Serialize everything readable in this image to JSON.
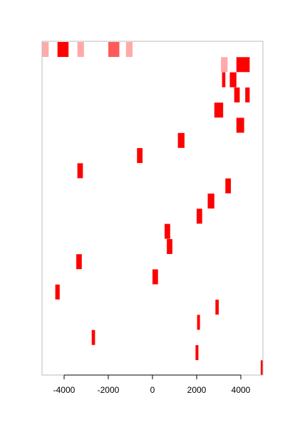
{
  "chart_data": {
    "type": "bar",
    "orientation": "horizontal-ranges",
    "xlim": [
      -5000,
      5000
    ],
    "ylim": [
      0,
      22
    ],
    "x_ticks": [
      -4000,
      -2000,
      0,
      2000,
      4000
    ],
    "x_tick_labels": [
      "-4000",
      "-2000",
      "0",
      "2000",
      "4000"
    ],
    "grid": false,
    "legend": "none",
    "colors": {
      "primary": "#ff0000",
      "medium": "#ff5a5a",
      "light": "#ffaaaa",
      "frame": "#bbbbbb",
      "axis": "#000000"
    },
    "series": [
      {
        "row": 0,
        "color": "light",
        "segments": [
          [
            -5000,
            -4700
          ],
          [
            -3400,
            -3100
          ],
          [
            -1200,
            -900
          ]
        ]
      },
      {
        "row": 0,
        "color": "primary",
        "segments": [
          [
            -4300,
            -3800
          ]
        ]
      },
      {
        "row": 0,
        "color": "medium",
        "segments": [
          [
            -2000,
            -1500
          ]
        ]
      },
      {
        "row": 1,
        "color": "light",
        "segments": [
          [
            3100,
            3400
          ]
        ]
      },
      {
        "row": 1,
        "color": "primary",
        "segments": [
          [
            3800,
            4400
          ]
        ]
      },
      {
        "row": 2,
        "color": "primary",
        "segments": [
          [
            3150,
            3300
          ],
          [
            3500,
            3800
          ]
        ]
      },
      {
        "row": 3,
        "color": "primary",
        "segments": [
          [
            3700,
            3950
          ],
          [
            4200,
            4400
          ]
        ]
      },
      {
        "row": 4,
        "color": "primary",
        "segments": [
          [
            2800,
            3200
          ]
        ]
      },
      {
        "row": 5,
        "color": "primary",
        "segments": [
          [
            3800,
            4150
          ]
        ]
      },
      {
        "row": 6,
        "color": "primary",
        "segments": [
          [
            1150,
            1450
          ]
        ]
      },
      {
        "row": 7,
        "color": "primary",
        "segments": [
          [
            -700,
            -450
          ]
        ]
      },
      {
        "row": 8,
        "color": "primary",
        "segments": [
          [
            -3400,
            -3150
          ]
        ]
      },
      {
        "row": 9,
        "color": "primary",
        "segments": [
          [
            3300,
            3550
          ]
        ]
      },
      {
        "row": 10,
        "color": "primary",
        "segments": [
          [
            2500,
            2800
          ]
        ]
      },
      {
        "row": 11,
        "color": "primary",
        "segments": [
          [
            2000,
            2250
          ]
        ]
      },
      {
        "row": 12,
        "color": "primary",
        "segments": [
          [
            550,
            800
          ]
        ]
      },
      {
        "row": 13,
        "color": "primary",
        "segments": [
          [
            650,
            900
          ]
        ]
      },
      {
        "row": 14,
        "color": "primary",
        "segments": [
          [
            -3450,
            -3200
          ]
        ]
      },
      {
        "row": 15,
        "color": "primary",
        "segments": [
          [
            0,
            250
          ]
        ]
      },
      {
        "row": 16,
        "color": "primary",
        "segments": [
          [
            -4400,
            -4200
          ]
        ]
      },
      {
        "row": 17,
        "color": "primary",
        "segments": [
          [
            2850,
            3000
          ]
        ]
      },
      {
        "row": 18,
        "color": "primary",
        "segments": [
          [
            2020,
            2150
          ]
        ]
      },
      {
        "row": 19,
        "color": "primary",
        "segments": [
          [
            -2750,
            -2600
          ]
        ]
      },
      {
        "row": 20,
        "color": "primary",
        "segments": [
          [
            1950,
            2080
          ]
        ]
      },
      {
        "row": 21,
        "color": "primary",
        "segments": [
          [
            4900,
            5000
          ]
        ]
      }
    ]
  }
}
